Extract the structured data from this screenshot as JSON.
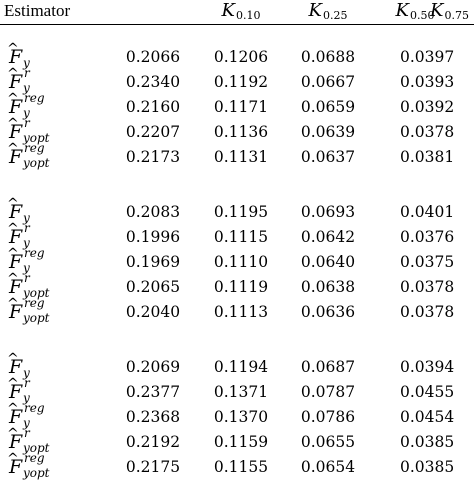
{
  "header": {
    "estimator": "Estimator",
    "columns": [
      {
        "name": "K",
        "sub": "0.10"
      },
      {
        "name": "K",
        "sub": "0.25"
      },
      {
        "name": "K",
        "sub": "0.50"
      },
      {
        "name": "K",
        "sub": "0.75"
      }
    ]
  },
  "estimators": [
    {
      "symbol": "F",
      "hat": "^",
      "sub": "y",
      "sup": ""
    },
    {
      "symbol": "F",
      "hat": "^",
      "sub": "y",
      "sup": "r"
    },
    {
      "symbol": "F",
      "hat": "^",
      "sub": "y",
      "sup": "reg"
    },
    {
      "symbol": "F",
      "hat": "^",
      "sub": "yopt",
      "sup": "r"
    },
    {
      "symbol": "F",
      "hat": "^",
      "sub": "yopt",
      "sup": "reg"
    }
  ],
  "groups": [
    {
      "rows": [
        [
          "0.2066",
          "0.1206",
          "0.0688",
          "0.0397"
        ],
        [
          "0.2340",
          "0.1192",
          "0.0667",
          "0.0393"
        ],
        [
          "0.2160",
          "0.1171",
          "0.0659",
          "0.0392"
        ],
        [
          "0.2207",
          "0.1136",
          "0.0639",
          "0.0378"
        ],
        [
          "0.2173",
          "0.1131",
          "0.0637",
          "0.0381"
        ]
      ]
    },
    {
      "rows": [
        [
          "0.2083",
          "0.1195",
          "0.0693",
          "0.0401"
        ],
        [
          "0.1996",
          "0.1115",
          "0.0642",
          "0.0376"
        ],
        [
          "0.1969",
          "0.1110",
          "0.0640",
          "0.0375"
        ],
        [
          "0.2065",
          "0.1119",
          "0.0638",
          "0.0378"
        ],
        [
          "0.2040",
          "0.1113",
          "0.0636",
          "0.0378"
        ]
      ]
    },
    {
      "rows": [
        [
          "0.2069",
          "0.1194",
          "0.0687",
          "0.0394"
        ],
        [
          "0.2377",
          "0.1371",
          "0.0787",
          "0.0455"
        ],
        [
          "0.2368",
          "0.1370",
          "0.0786",
          "0.0454"
        ],
        [
          "0.2192",
          "0.1159",
          "0.0655",
          "0.0385"
        ],
        [
          "0.2175",
          "0.1155",
          "0.0654",
          "0.0385"
        ]
      ]
    }
  ]
}
